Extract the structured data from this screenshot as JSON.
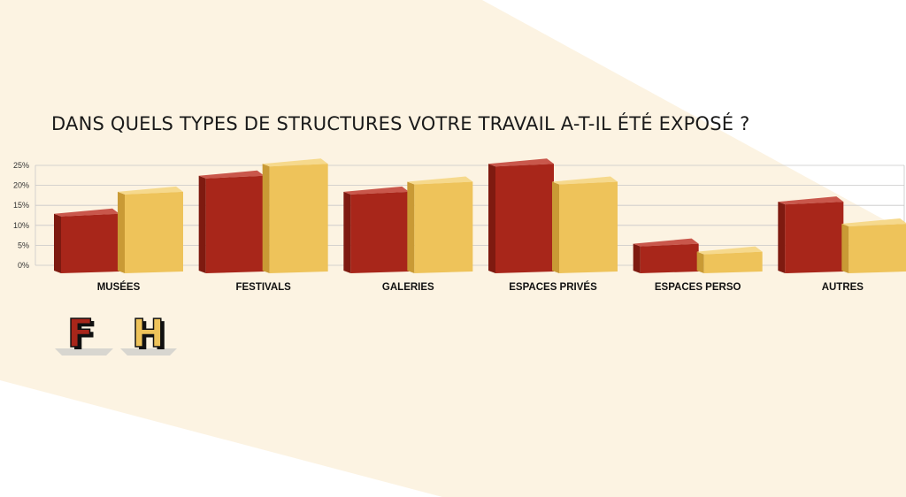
{
  "colors": {
    "femmes": "#a8261a",
    "hommes": "#eec35a",
    "background_band": "#fcf3e2"
  },
  "chart_data": {
    "type": "bar",
    "title": "DANS QUELS TYPES DE STRUCTURES VOTRE TRAVAIL A-T-IL ÉTÉ EXPOSÉ ?",
    "categories": [
      "MUSÉES",
      "FESTIVALS",
      "GALERIES",
      "ESPACES PRIVÉS",
      "ESPACES PERSO",
      "AUTRES"
    ],
    "series": [
      {
        "name": "F",
        "values": [
          14,
          23.5,
          19.5,
          26.5,
          6.5,
          17
        ]
      },
      {
        "name": "H",
        "values": [
          19.5,
          26.5,
          22,
          22,
          4.5,
          11.5
        ]
      }
    ],
    "yticks": [
      "0%",
      "5%",
      "10%",
      "15%",
      "20%",
      "25%"
    ],
    "ytick_values": [
      0,
      5,
      10,
      15,
      20,
      25
    ],
    "ylim": [
      0,
      25
    ],
    "grid": true,
    "legend_position": "bottom-left",
    "legend_style": "3d letters"
  }
}
